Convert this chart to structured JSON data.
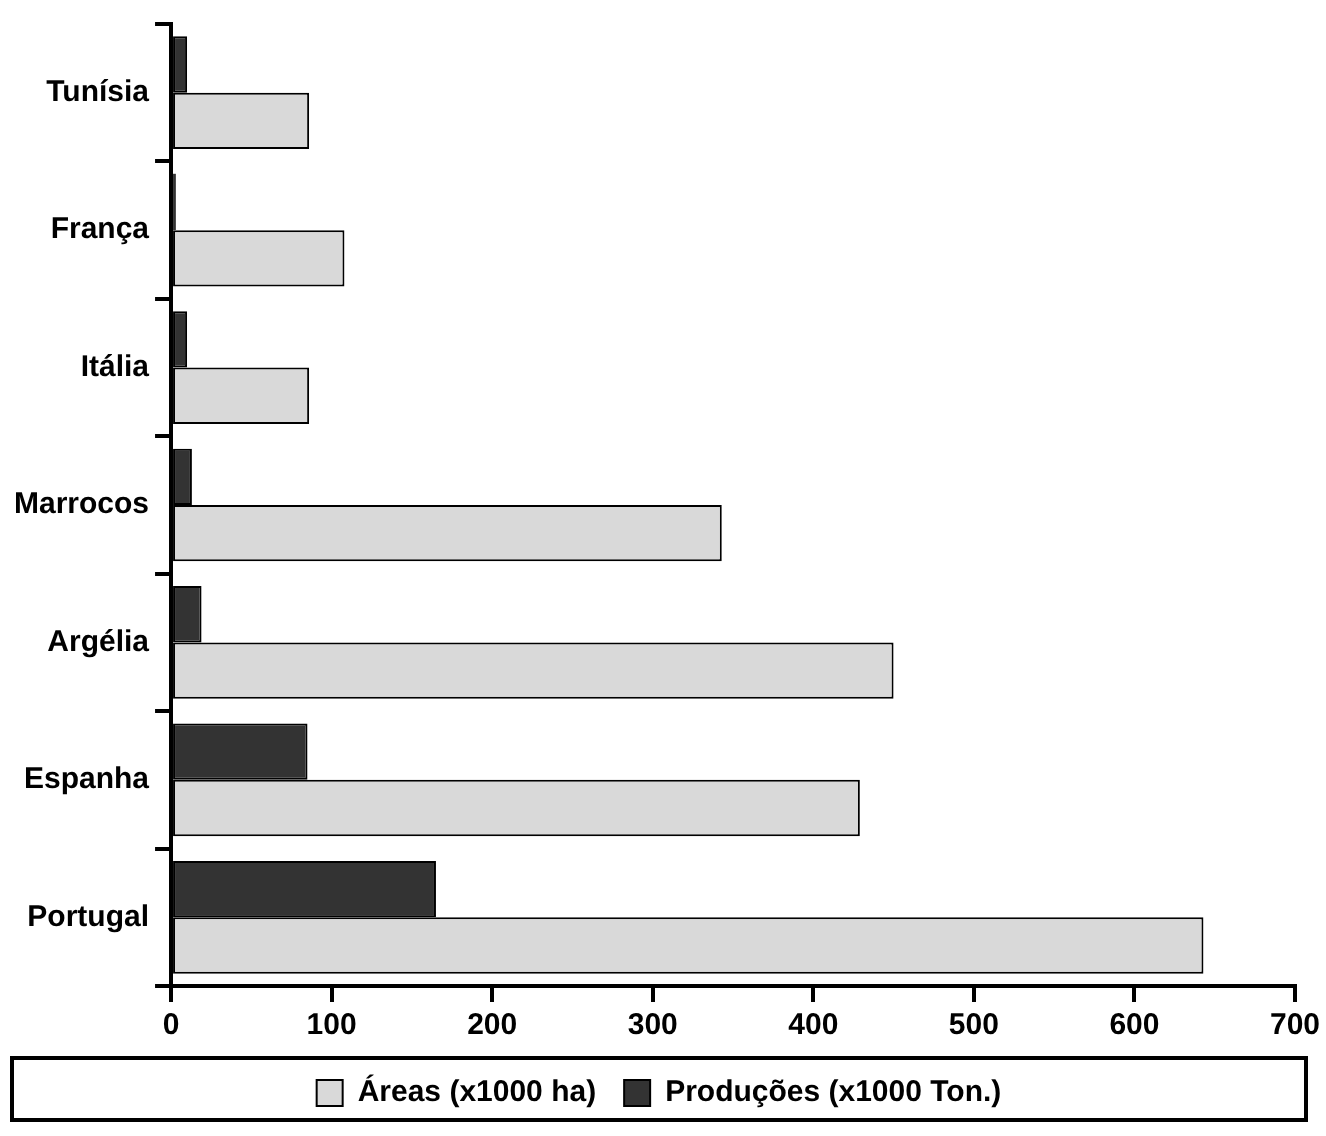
{
  "chart_data": {
    "type": "bar",
    "orientation": "horizontal",
    "categories": [
      "Tunísia",
      "França",
      "Itália",
      "Marrocos",
      "Argélia",
      "Espanha",
      "Portugal"
    ],
    "series": [
      {
        "name": "Áreas (x1000 ha)",
        "color": "#d9d9d9",
        "values": [
          86,
          108,
          86,
          343,
          450,
          429,
          643
        ]
      },
      {
        "name": "Produções (x1000 Ton.)",
        "color": "#333333",
        "values": [
          10,
          3,
          10,
          13,
          19,
          85,
          165
        ]
      }
    ],
    "xlim": [
      0,
      700
    ],
    "xticks": [
      0,
      100,
      200,
      300,
      400,
      500,
      600,
      700
    ],
    "grid": false,
    "legend": "bottom"
  }
}
